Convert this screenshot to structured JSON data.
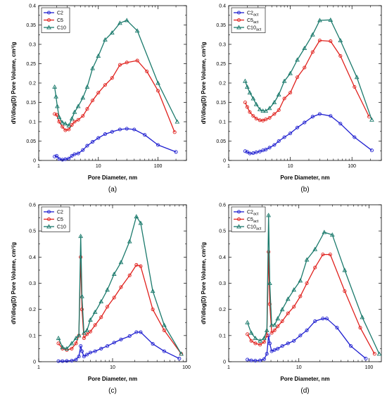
{
  "colors": {
    "C2": "#1f1fd0",
    "C5": "#e0201c",
    "C10": "#1b7a6c",
    "axis": "#000000"
  },
  "chart_data": [
    {
      "type": "line",
      "caption": "(a)",
      "xlabel": "Pore Diameter, nm",
      "ylabel": "dV/dlog(D) Pore Volume, cm³/g",
      "xscale": "log",
      "xlim": [
        1,
        300
      ],
      "ylim": [
        0,
        0.4
      ],
      "yticks": [
        0,
        0.05,
        0.1,
        0.15,
        0.2,
        0.25,
        0.3,
        0.35,
        0.4
      ],
      "ytick_labels": [
        "0",
        "0.05",
        "0.1",
        "0.15",
        "0.2",
        "0.25",
        "0.3",
        "0.35",
        "0.4"
      ],
      "xticks": [
        1,
        10,
        100
      ],
      "xtick_labels": [
        "1",
        "10",
        "100"
      ],
      "legend_position": "top-left",
      "series": [
        {
          "name": "C2",
          "sub": "",
          "marker": "circle",
          "color_key": "C2",
          "x": [
            1.85,
            2.0,
            2.2,
            2.5,
            2.8,
            3.2,
            3.6,
            4.0,
            4.6,
            5.5,
            6.5,
            8.0,
            10,
            13,
            17,
            23,
            30,
            40,
            60,
            100,
            200
          ],
          "y": [
            0.01,
            0.012,
            0.004,
            0.002,
            0.003,
            0.005,
            0.012,
            0.016,
            0.018,
            0.027,
            0.038,
            0.048,
            0.058,
            0.068,
            0.074,
            0.08,
            0.082,
            0.08,
            0.066,
            0.04,
            0.022
          ]
        },
        {
          "name": "C5",
          "sub": "",
          "marker": "circle",
          "color_key": "C5",
          "x": [
            1.85,
            2.0,
            2.2,
            2.5,
            2.8,
            3.2,
            3.6,
            4.0,
            4.6,
            5.5,
            6.5,
            8.0,
            10,
            13,
            17,
            23,
            30,
            45,
            65,
            100,
            190
          ],
          "y": [
            0.12,
            0.118,
            0.1,
            0.087,
            0.078,
            0.08,
            0.092,
            0.1,
            0.105,
            0.115,
            0.133,
            0.155,
            0.175,
            0.195,
            0.213,
            0.247,
            0.253,
            0.258,
            0.23,
            0.18,
            0.073
          ]
        },
        {
          "name": "C10",
          "sub": "",
          "marker": "triangle",
          "color_key": "C10",
          "x": [
            1.85,
            1.95,
            2.05,
            2.2,
            2.5,
            2.8,
            3.2,
            3.6,
            4.0,
            4.6,
            5.5,
            6.5,
            8.0,
            10,
            13,
            17,
            23,
            30,
            45,
            100,
            210
          ],
          "y": [
            0.19,
            0.165,
            0.14,
            0.112,
            0.098,
            0.095,
            0.09,
            0.108,
            0.125,
            0.14,
            0.162,
            0.19,
            0.238,
            0.27,
            0.312,
            0.33,
            0.355,
            0.362,
            0.335,
            0.2,
            0.1
          ]
        }
      ]
    },
    {
      "type": "line",
      "caption": "(b)",
      "xlabel": "Pore Diameter, nm",
      "ylabel": "dV/dlog(D) Pore Volume, cm³/g",
      "xscale": "log",
      "xlim": [
        1,
        300
      ],
      "ylim": [
        0,
        0.4
      ],
      "yticks": [
        0,
        0.05,
        0.1,
        0.15,
        0.2,
        0.25,
        0.3,
        0.35,
        0.4
      ],
      "ytick_labels": [
        "0",
        "0.05",
        "0.1",
        "0.15",
        "0.2",
        "0.25",
        "0.3",
        "0.35",
        "0.4"
      ],
      "xticks": [
        1,
        10,
        100
      ],
      "xtick_labels": [
        "1",
        "10",
        "100"
      ],
      "legend_position": "top-left",
      "series": [
        {
          "name": "C2",
          "sub": "act",
          "marker": "circle",
          "color_key": "C2",
          "x": [
            1.85,
            2.0,
            2.2,
            2.5,
            2.8,
            3.2,
            3.6,
            4.0,
            4.6,
            5.5,
            6.5,
            8.0,
            10,
            13,
            17,
            23,
            30,
            45,
            65,
            110,
            210
          ],
          "y": [
            0.024,
            0.022,
            0.018,
            0.019,
            0.021,
            0.023,
            0.026,
            0.028,
            0.033,
            0.04,
            0.05,
            0.06,
            0.07,
            0.085,
            0.098,
            0.113,
            0.12,
            0.115,
            0.095,
            0.06,
            0.026
          ]
        },
        {
          "name": "C5",
          "sub": "act",
          "marker": "circle",
          "color_key": "C5",
          "x": [
            1.85,
            2.0,
            2.2,
            2.5,
            2.8,
            3.2,
            3.6,
            4.0,
            4.6,
            5.5,
            6.5,
            8.0,
            10,
            13,
            17,
            23,
            30,
            45,
            65,
            110,
            190
          ],
          "y": [
            0.15,
            0.138,
            0.125,
            0.115,
            0.108,
            0.104,
            0.103,
            0.106,
            0.11,
            0.12,
            0.13,
            0.16,
            0.175,
            0.215,
            0.24,
            0.28,
            0.31,
            0.308,
            0.27,
            0.19,
            0.113
          ]
        },
        {
          "name": "C10",
          "sub": "act",
          "marker": "triangle",
          "color_key": "C10",
          "x": [
            1.85,
            2.0,
            2.2,
            2.5,
            2.8,
            3.2,
            3.6,
            4.0,
            4.6,
            5.5,
            6.5,
            8.0,
            10,
            13,
            17,
            23,
            30,
            45,
            65,
            120,
            210
          ],
          "y": [
            0.205,
            0.19,
            0.175,
            0.16,
            0.145,
            0.132,
            0.128,
            0.128,
            0.135,
            0.15,
            0.17,
            0.205,
            0.225,
            0.26,
            0.29,
            0.325,
            0.362,
            0.363,
            0.31,
            0.215,
            0.105
          ]
        }
      ]
    },
    {
      "type": "line",
      "caption": "(c)",
      "xlabel": "Pore Diameter, nm",
      "ylabel": "dV/dlog(D) Pore Volume, cm³/g",
      "xscale": "log",
      "xlim": [
        1,
        100
      ],
      "ylim": [
        0,
        0.6
      ],
      "yticks": [
        0,
        0.1,
        0.2,
        0.3,
        0.4,
        0.5,
        0.6
      ],
      "ytick_labels": [
        "0",
        "0.1",
        "0.2",
        "0.3",
        "0.4",
        "0.5",
        "0.6"
      ],
      "xticks": [
        1,
        10,
        100
      ],
      "xtick_labels": [
        "1",
        "10",
        "100"
      ],
      "legend_position": "top-left",
      "series": [
        {
          "name": "C2",
          "sub": "",
          "marker": "circle",
          "color_key": "C2",
          "x": [
            1.85,
            2.1,
            2.4,
            2.8,
            3.2,
            3.5,
            3.7,
            3.85,
            4.1,
            4.5,
            5.0,
            5.8,
            7.0,
            8.5,
            10.5,
            13,
            17,
            21,
            24,
            35,
            50,
            80
          ],
          "y": [
            0.002,
            0.002,
            0.003,
            0.004,
            0.008,
            0.02,
            0.06,
            0.04,
            0.02,
            0.027,
            0.035,
            0.04,
            0.05,
            0.06,
            0.073,
            0.085,
            0.098,
            0.113,
            0.113,
            0.068,
            0.04,
            0.012
          ]
        },
        {
          "name": "C5",
          "sub": "",
          "marker": "circle",
          "color_key": "C5",
          "x": [
            1.85,
            2.1,
            2.4,
            2.8,
            3.2,
            3.5,
            3.7,
            3.85,
            4.1,
            4.5,
            5.0,
            5.8,
            7.0,
            8.5,
            10.5,
            13,
            17,
            21,
            24,
            35,
            50,
            85
          ],
          "y": [
            0.07,
            0.05,
            0.045,
            0.05,
            0.07,
            0.1,
            0.4,
            0.2,
            0.09,
            0.105,
            0.115,
            0.14,
            0.17,
            0.21,
            0.245,
            0.285,
            0.33,
            0.37,
            0.365,
            0.2,
            0.12,
            0.03
          ]
        },
        {
          "name": "C10",
          "sub": "",
          "marker": "triangle",
          "color_key": "C10",
          "x": [
            1.85,
            2.1,
            2.4,
            2.8,
            3.2,
            3.5,
            3.7,
            3.85,
            4.1,
            4.5,
            5.0,
            5.8,
            7.0,
            8.5,
            10.5,
            13,
            17,
            21,
            24,
            35,
            50,
            85
          ],
          "y": [
            0.09,
            0.055,
            0.05,
            0.07,
            0.09,
            0.1,
            0.48,
            0.25,
            0.11,
            0.12,
            0.16,
            0.19,
            0.23,
            0.275,
            0.335,
            0.38,
            0.46,
            0.555,
            0.53,
            0.27,
            0.14,
            0.03
          ]
        }
      ]
    },
    {
      "type": "line",
      "caption": "(d)",
      "xlabel": "Pore Diameter, nm",
      "ylabel": "dV/dlog(D) Pore Volume, cm³/g",
      "xscale": "log",
      "xlim": [
        1,
        150
      ],
      "ylim": [
        0,
        0.6
      ],
      "yticks": [
        0,
        0.1,
        0.2,
        0.3,
        0.4,
        0.5,
        0.6
      ],
      "ytick_labels": [
        "0",
        "0.1",
        "0.2",
        "0.3",
        "0.4",
        "0.5",
        "0.6"
      ],
      "xticks": [
        1,
        10,
        100
      ],
      "xtick_labels": [
        "1",
        "10",
        "100"
      ],
      "legend_position": "top-left",
      "series": [
        {
          "name": "C2",
          "sub": "act",
          "marker": "circle",
          "color_key": "C2",
          "x": [
            1.85,
            2.1,
            2.4,
            2.8,
            3.2,
            3.5,
            3.7,
            3.85,
            4.1,
            4.5,
            5.0,
            5.8,
            7.0,
            8.5,
            10.5,
            13,
            17,
            22,
            25,
            35,
            55,
            90
          ],
          "y": [
            0.008,
            0.005,
            0.004,
            0.005,
            0.01,
            0.03,
            0.1,
            0.07,
            0.04,
            0.045,
            0.05,
            0.06,
            0.07,
            0.08,
            0.1,
            0.12,
            0.155,
            0.165,
            0.165,
            0.13,
            0.06,
            0.012
          ]
        },
        {
          "name": "C5",
          "sub": "act",
          "marker": "circle",
          "color_key": "C5",
          "x": [
            1.85,
            2.1,
            2.4,
            2.8,
            3.2,
            3.5,
            3.7,
            3.85,
            4.1,
            4.5,
            5.0,
            5.8,
            7.0,
            8.5,
            10.5,
            13,
            17,
            22,
            28,
            45,
            75,
            120
          ],
          "y": [
            0.105,
            0.08,
            0.07,
            0.065,
            0.075,
            0.1,
            0.42,
            0.22,
            0.11,
            0.12,
            0.135,
            0.155,
            0.185,
            0.21,
            0.25,
            0.3,
            0.36,
            0.41,
            0.41,
            0.27,
            0.13,
            0.03
          ]
        },
        {
          "name": "C10",
          "sub": "act",
          "marker": "triangle",
          "color_key": "C10",
          "x": [
            1.85,
            2.1,
            2.4,
            2.8,
            3.2,
            3.5,
            3.7,
            3.85,
            4.1,
            4.5,
            5.0,
            5.8,
            7.0,
            8.5,
            10.5,
            13,
            17,
            23,
            30,
            45,
            80,
            140
          ],
          "y": [
            0.15,
            0.11,
            0.09,
            0.08,
            0.09,
            0.12,
            0.56,
            0.3,
            0.14,
            0.14,
            0.165,
            0.2,
            0.24,
            0.275,
            0.31,
            0.39,
            0.43,
            0.495,
            0.485,
            0.35,
            0.17,
            0.03
          ]
        }
      ]
    }
  ]
}
